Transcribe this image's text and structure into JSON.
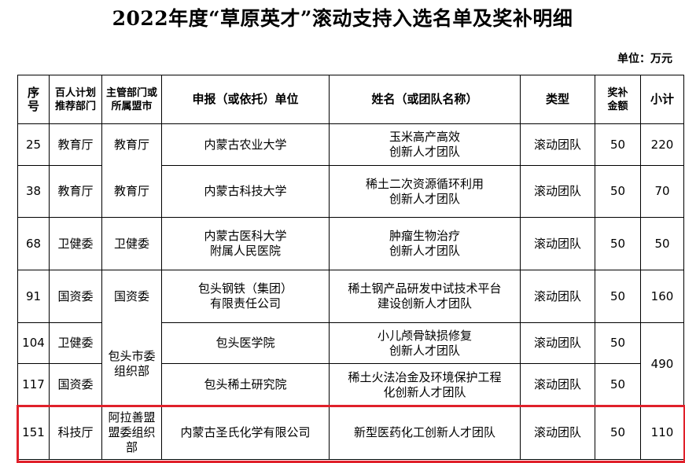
{
  "title": "2022年度“草原英才”滚动支持入选名单及奖补明细",
  "unit": "单位：万元",
  "headers": {
    "seq": "序号",
    "recommend": "百人计划推荐部门",
    "dept": "主管部门或所属盟市",
    "unit": "申报（或依托）单位",
    "name": "姓名（或团队名称）",
    "type": "类型",
    "amount": "奖补金额",
    "subtotal": "小计"
  },
  "rows": [
    {
      "seq": "25",
      "recommend": "教育厅",
      "dept": "教育厅",
      "unit": "内蒙古农业大学",
      "name": "玉米高产高效\n创新人才团队",
      "type": "滚动团队",
      "amount": "50",
      "subtotal": "220"
    },
    {
      "seq": "38",
      "recommend": "教育厅",
      "dept": "教育厅",
      "unit": "内蒙古科技大学",
      "name": "稀土二次资源循环利用\n创新人才团队",
      "type": "滚动团队",
      "amount": "50",
      "subtotal": "70"
    },
    {
      "seq": "68",
      "recommend": "卫健委",
      "dept": "卫健委",
      "unit": "内蒙古医科大学\n附属人民医院",
      "name": "肿瘤生物治疗\n创新人才团队",
      "type": "滚动团队",
      "amount": "50",
      "subtotal": "50"
    },
    {
      "seq": "91",
      "recommend": "国资委",
      "dept": "国资委",
      "unit": "包头钢铁（集团）\n有限责任公司",
      "name": "稀土钢产品研发中试技术平台\n建设创新人才团队",
      "type": "滚动团队",
      "amount": "50",
      "subtotal": "160"
    },
    {
      "seq": "104",
      "recommend": "卫健委",
      "dept": "包头市委\n组织部",
      "unit": "包头医学院",
      "name": "小儿颅骨缺损修复\n创新人才团队",
      "type": "滚动团队",
      "amount": "50",
      "subtotal": "490"
    },
    {
      "seq": "117",
      "recommend": "国资委",
      "unit": "包头稀土研究院",
      "name": "稀土火法冶金及环境保护工程\n化创新人才团队",
      "type": "滚动团队",
      "amount": "50"
    },
    {
      "seq": "151",
      "recommend": "科技厅",
      "dept": "阿拉善盟\n盟委组织\n部",
      "unit": "内蒙古圣氏化学有限公司",
      "name": "新型医药化工创新人才团队",
      "type": "滚动团队",
      "amount": "50",
      "subtotal": "110"
    }
  ],
  "colors": {
    "highlight": "#e0202a"
  }
}
